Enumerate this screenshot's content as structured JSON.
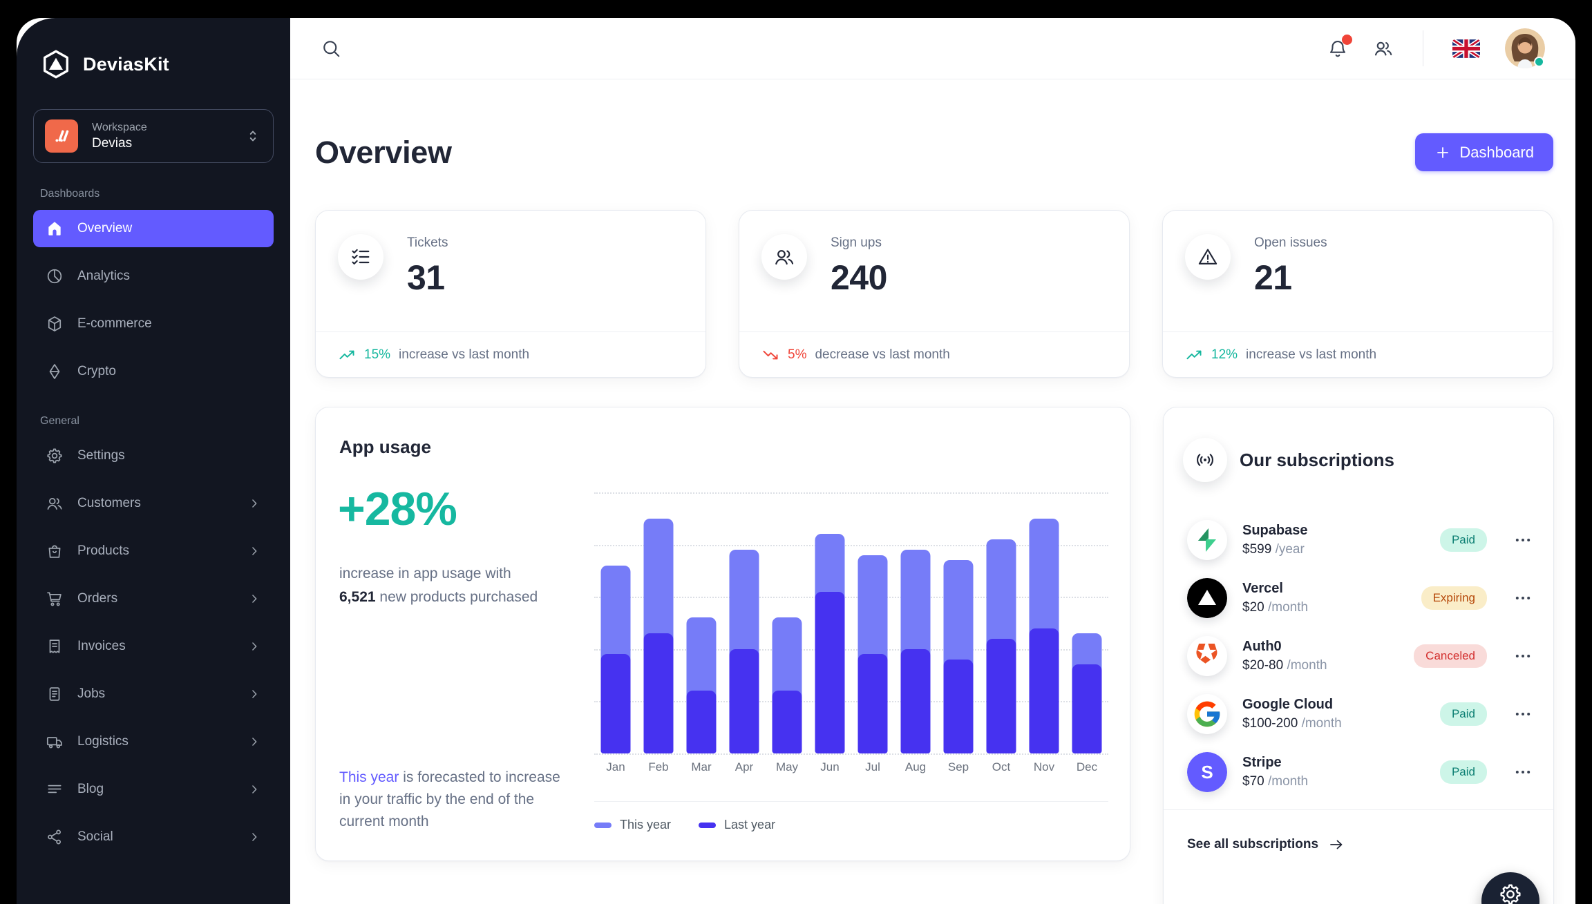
{
  "sidebar": {
    "brand": "DeviasKit",
    "workspace": {
      "label": "Workspace",
      "name": "Devias",
      "icon": "workspace-glyph"
    },
    "sections": [
      {
        "label": "Dashboards",
        "items": [
          {
            "label": "Overview",
            "icon": "home",
            "active": true,
            "chevron": false
          },
          {
            "label": "Analytics",
            "icon": "chart-pie",
            "active": false,
            "chevron": false
          },
          {
            "label": "E-commerce",
            "icon": "cube",
            "active": false,
            "chevron": false
          },
          {
            "label": "Crypto",
            "icon": "diamond",
            "active": false,
            "chevron": false
          }
        ]
      },
      {
        "label": "General",
        "items": [
          {
            "label": "Settings",
            "icon": "gear",
            "active": false,
            "chevron": false
          },
          {
            "label": "Customers",
            "icon": "users",
            "active": false,
            "chevron": true
          },
          {
            "label": "Products",
            "icon": "bag",
            "active": false,
            "chevron": true
          },
          {
            "label": "Orders",
            "icon": "cart",
            "active": false,
            "chevron": true
          },
          {
            "label": "Invoices",
            "icon": "receipt",
            "active": false,
            "chevron": true
          },
          {
            "label": "Jobs",
            "icon": "note",
            "active": false,
            "chevron": true
          },
          {
            "label": "Logistics",
            "icon": "truck",
            "active": false,
            "chevron": true
          },
          {
            "label": "Blog",
            "icon": "lines",
            "active": false,
            "chevron": true
          },
          {
            "label": "Social",
            "icon": "share",
            "active": false,
            "chevron": true
          }
        ]
      }
    ]
  },
  "topbar": {
    "icons": [
      "search-icon",
      "bell-icon",
      "users-icon",
      "uk-flag",
      "avatar"
    ],
    "notification_badge": true,
    "user_status": "online"
  },
  "page": {
    "title": "Overview",
    "action_button": {
      "label": "Dashboard",
      "icon": "plus"
    }
  },
  "stats": [
    {
      "label": "Tickets",
      "value": "31",
      "icon": "list-checks",
      "trend": "up",
      "trend_value": "15%",
      "trend_text": "increase vs last month"
    },
    {
      "label": "Sign ups",
      "value": "240",
      "icon": "users",
      "trend": "down",
      "trend_value": "5%",
      "trend_text": "decrease vs last month"
    },
    {
      "label": "Open issues",
      "value": "21",
      "icon": "warning",
      "trend": "up",
      "trend_value": "12%",
      "trend_text": "increase vs last month"
    }
  ],
  "app_usage": {
    "title": "App usage",
    "highlight": "+28%",
    "desc_line1": "increase in app usage with",
    "desc_strong": "6,521",
    "desc_line2": " new products purchased",
    "note_highlight": "This year",
    "note_rest": " is forecasted to increase in your traffic by the end of the current month",
    "legend": [
      {
        "label": "This year",
        "color": "#767CF8"
      },
      {
        "label": "Last year",
        "color": "#4632F0"
      }
    ]
  },
  "chart_data": {
    "type": "bar",
    "categories": [
      "Jan",
      "Feb",
      "Mar",
      "Apr",
      "May",
      "Jun",
      "Jul",
      "Aug",
      "Sep",
      "Oct",
      "Nov",
      "Dec"
    ],
    "series": [
      {
        "name": "This year",
        "color": "#767CF8",
        "values": [
          36,
          45,
          26,
          39,
          26,
          42,
          38,
          39,
          37,
          41,
          45,
          23
        ]
      },
      {
        "name": "Last year",
        "color": "#4632F0",
        "values": [
          19,
          23,
          12,
          20,
          12,
          31,
          19,
          20,
          18,
          22,
          24,
          17
        ]
      }
    ],
    "style": "overlaid-rounded-bars",
    "ylim": [
      0,
      50
    ],
    "grid_step": 10,
    "grid": "dotted-horizontal",
    "yticks_visible": false,
    "legend_position": "bottom-left"
  },
  "subscriptions": {
    "title": "Our subscriptions",
    "header_icon": "radio",
    "items": [
      {
        "name": "Supabase",
        "logo": "supabase",
        "price": "$599",
        "period": "/year",
        "status": "Paid"
      },
      {
        "name": "Vercel",
        "logo": "vercel",
        "price": "$20",
        "period": "/month",
        "status": "Expiring"
      },
      {
        "name": "Auth0",
        "logo": "auth0",
        "price": "$20-80",
        "period": "/month",
        "status": "Canceled"
      },
      {
        "name": "Google Cloud",
        "logo": "google",
        "price": "$100-200",
        "period": "/month",
        "status": "Paid"
      },
      {
        "name": "Stripe",
        "logo": "stripe",
        "price": "$70",
        "period": "/month",
        "status": "Paid"
      }
    ],
    "footer_link": "See all subscriptions"
  },
  "colors": {
    "accent": "#635BFF",
    "sidebar_bg": "#121621",
    "text_dark": "#212636",
    "text_gray": "#667085",
    "success": "#15B79E",
    "danger": "#F04438",
    "bar_light": "#767CF8",
    "bar_dark": "#4632F0",
    "badge_paid_bg": "#CDF5E8",
    "badge_paid_text": "#0E8074",
    "badge_expiring_bg": "#FAEDC8",
    "badge_expiring_text": "#B54708",
    "badge_canceled_bg": "#F9DBD9",
    "badge_canceled_text": "#D3302F"
  }
}
